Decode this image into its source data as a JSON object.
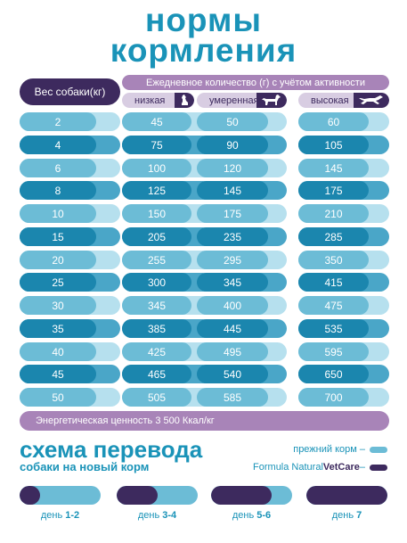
{
  "title": {
    "line1": "нормы",
    "line2": "кормления"
  },
  "table": {
    "weight_header": "Вес собаки(кг)",
    "daily_header": "Ежедневное количество (г) с учётом активности",
    "activity": [
      {
        "label": "низкая",
        "icon": "sitting-dog-icon"
      },
      {
        "label": "умеренная",
        "icon": "standing-dog-icon"
      },
      {
        "label": "высокая",
        "icon": "running-dog-icon"
      }
    ],
    "rows": [
      {
        "weight": "2",
        "low": "45",
        "moderate": "50",
        "high": "60"
      },
      {
        "weight": "4",
        "low": "75",
        "moderate": "90",
        "high": "105"
      },
      {
        "weight": "6",
        "low": "100",
        "moderate": "120",
        "high": "145"
      },
      {
        "weight": "8",
        "low": "125",
        "moderate": "145",
        "high": "175"
      },
      {
        "weight": "10",
        "low": "150",
        "moderate": "175",
        "high": "210"
      },
      {
        "weight": "15",
        "low": "205",
        "moderate": "235",
        "high": "285"
      },
      {
        "weight": "20",
        "low": "255",
        "moderate": "295",
        "high": "350"
      },
      {
        "weight": "25",
        "low": "300",
        "moderate": "345",
        "high": "415"
      },
      {
        "weight": "30",
        "low": "345",
        "moderate": "400",
        "high": "475"
      },
      {
        "weight": "35",
        "low": "385",
        "moderate": "445",
        "high": "535"
      },
      {
        "weight": "40",
        "low": "425",
        "moderate": "495",
        "high": "595"
      },
      {
        "weight": "45",
        "low": "465",
        "moderate": "540",
        "high": "650"
      },
      {
        "weight": "50",
        "low": "505",
        "moderate": "585",
        "high": "700"
      }
    ],
    "energy": "Энергетическая ценность 3 500 Ккал/кг"
  },
  "scheme": {
    "title": "схема перевода",
    "subtitle": "собаки на новый корм",
    "legend_old": "прежний корм –",
    "legend_new_prefix": "Formula Natural ",
    "legend_new_brand": "VetCare",
    "legend_new_suffix": " –",
    "days": [
      {
        "word": "день ",
        "range": "1-2",
        "new_share": 0.25
      },
      {
        "word": "день ",
        "range": "3-4",
        "new_share": 0.5
      },
      {
        "word": "день ",
        "range": "5-6",
        "new_share": 0.75
      },
      {
        "word": "день ",
        "range": "7",
        "new_share": 1.0
      }
    ]
  },
  "colors": {
    "light_track": "#b6e0ee",
    "light_value": "#6cbcd6",
    "dark_track": "#4aa6c8",
    "dark_value": "#1b86ae",
    "old_food": "#6cbcd6",
    "new_food": "#3d2a5e"
  }
}
